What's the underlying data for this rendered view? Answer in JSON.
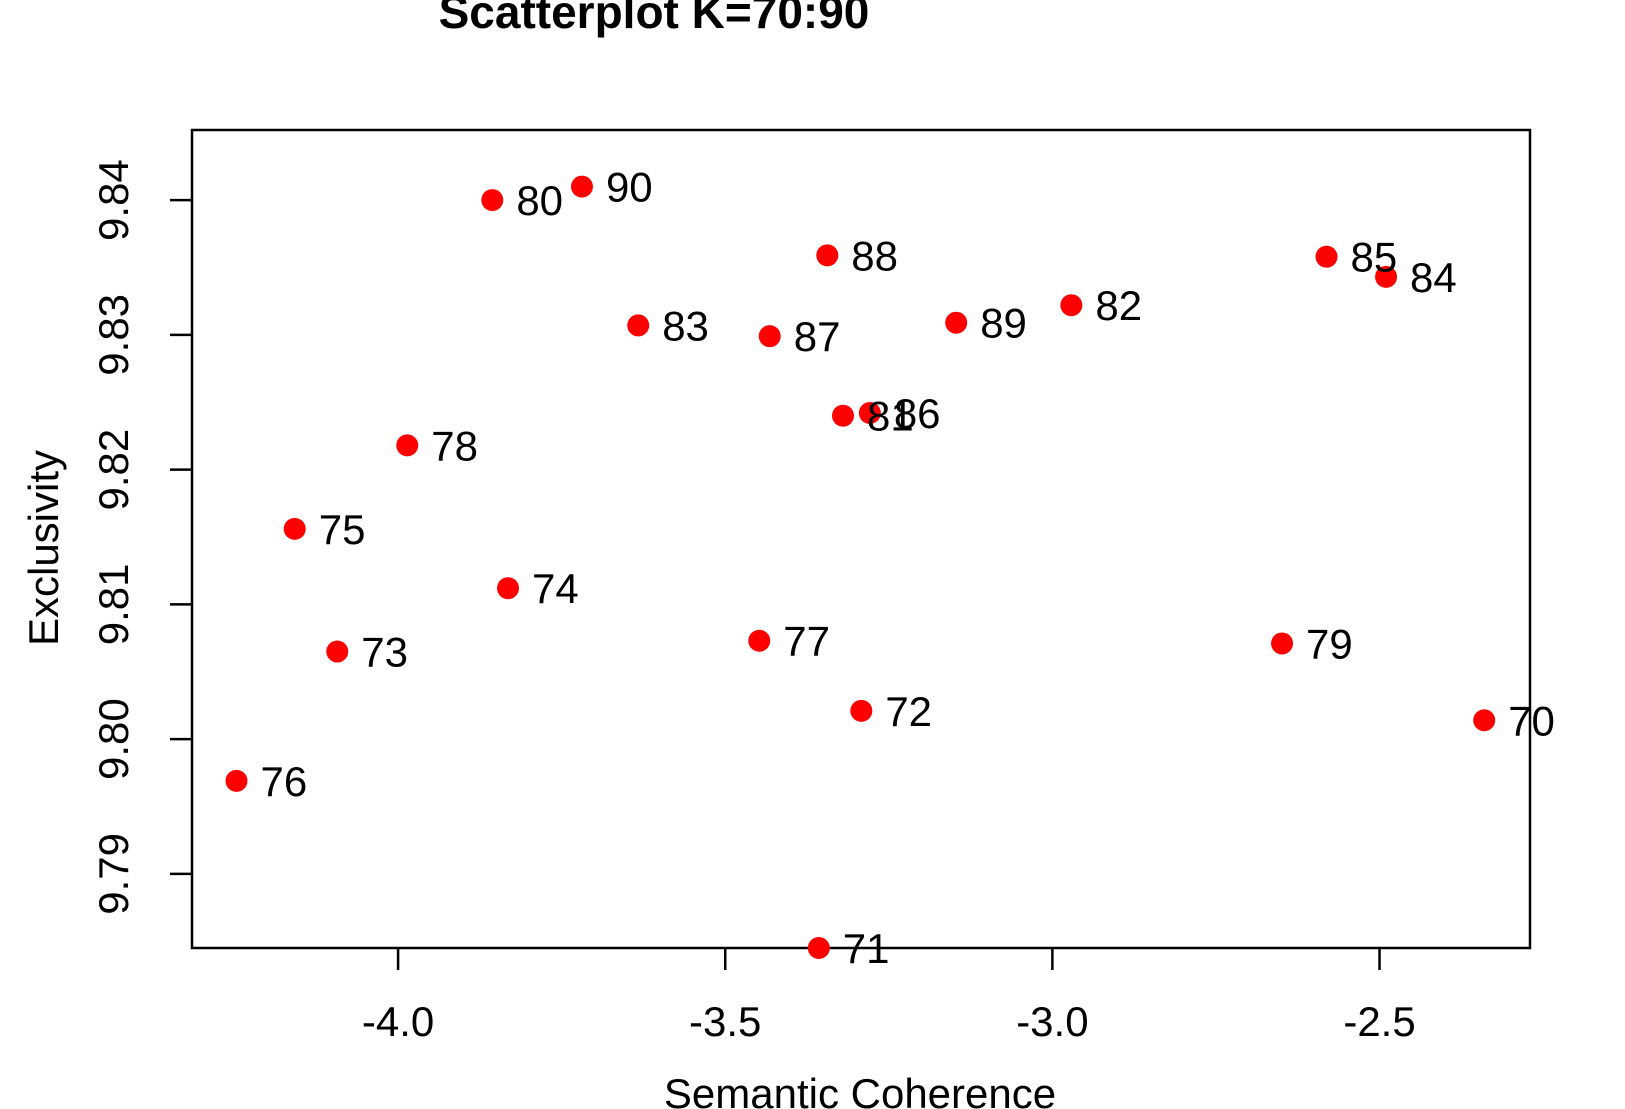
{
  "chart_data": {
    "type": "scatter",
    "title": "Scatterplot K=70:90",
    "xlabel": "Semantic Coherence",
    "ylabel": "Exclusivity",
    "xlim": [
      -4.315,
      -2.27
    ],
    "ylim": [
      9.7845,
      9.8452
    ],
    "x_ticks": [
      -4.0,
      -3.5,
      -3.0,
      -2.5
    ],
    "x_tick_labels": [
      "-4.0",
      "-3.5",
      "-3.0",
      "-2.5"
    ],
    "y_ticks": [
      9.79,
      9.8,
      9.81,
      9.82,
      9.83,
      9.84
    ],
    "y_tick_labels": [
      "9.79",
      "9.80",
      "9.81",
      "9.82",
      "9.83",
      "9.84"
    ],
    "grid": false,
    "point_color": "#ff0000",
    "points": [
      {
        "label": "70",
        "x": -2.34,
        "y": 9.8014
      },
      {
        "label": "71",
        "x": -3.357,
        "y": 9.7845
      },
      {
        "label": "72",
        "x": -3.292,
        "y": 9.8021
      },
      {
        "label": "73",
        "x": -4.093,
        "y": 9.8065
      },
      {
        "label": "74",
        "x": -3.832,
        "y": 9.8112
      },
      {
        "label": "75",
        "x": -4.158,
        "y": 9.8156
      },
      {
        "label": "76",
        "x": -4.247,
        "y": 9.7969
      },
      {
        "label": "77",
        "x": -3.448,
        "y": 9.8073
      },
      {
        "label": "78",
        "x": -3.986,
        "y": 9.8218
      },
      {
        "label": "79",
        "x": -2.649,
        "y": 9.8071
      },
      {
        "label": "80",
        "x": -3.856,
        "y": 9.84
      },
      {
        "label": "81",
        "x": -3.32,
        "y": 9.824
      },
      {
        "label": "82",
        "x": -2.971,
        "y": 9.8322
      },
      {
        "label": "83",
        "x": -3.633,
        "y": 9.8307
      },
      {
        "label": "84",
        "x": -2.49,
        "y": 9.8343
      },
      {
        "label": "85",
        "x": -2.581,
        "y": 9.8358
      },
      {
        "label": "86",
        "x": -3.279,
        "y": 9.8242
      },
      {
        "label": "87",
        "x": -3.432,
        "y": 9.8299
      },
      {
        "label": "88",
        "x": -3.344,
        "y": 9.8359
      },
      {
        "label": "89",
        "x": -3.147,
        "y": 9.8309
      },
      {
        "label": "90",
        "x": -3.719,
        "y": 9.841
      }
    ]
  }
}
